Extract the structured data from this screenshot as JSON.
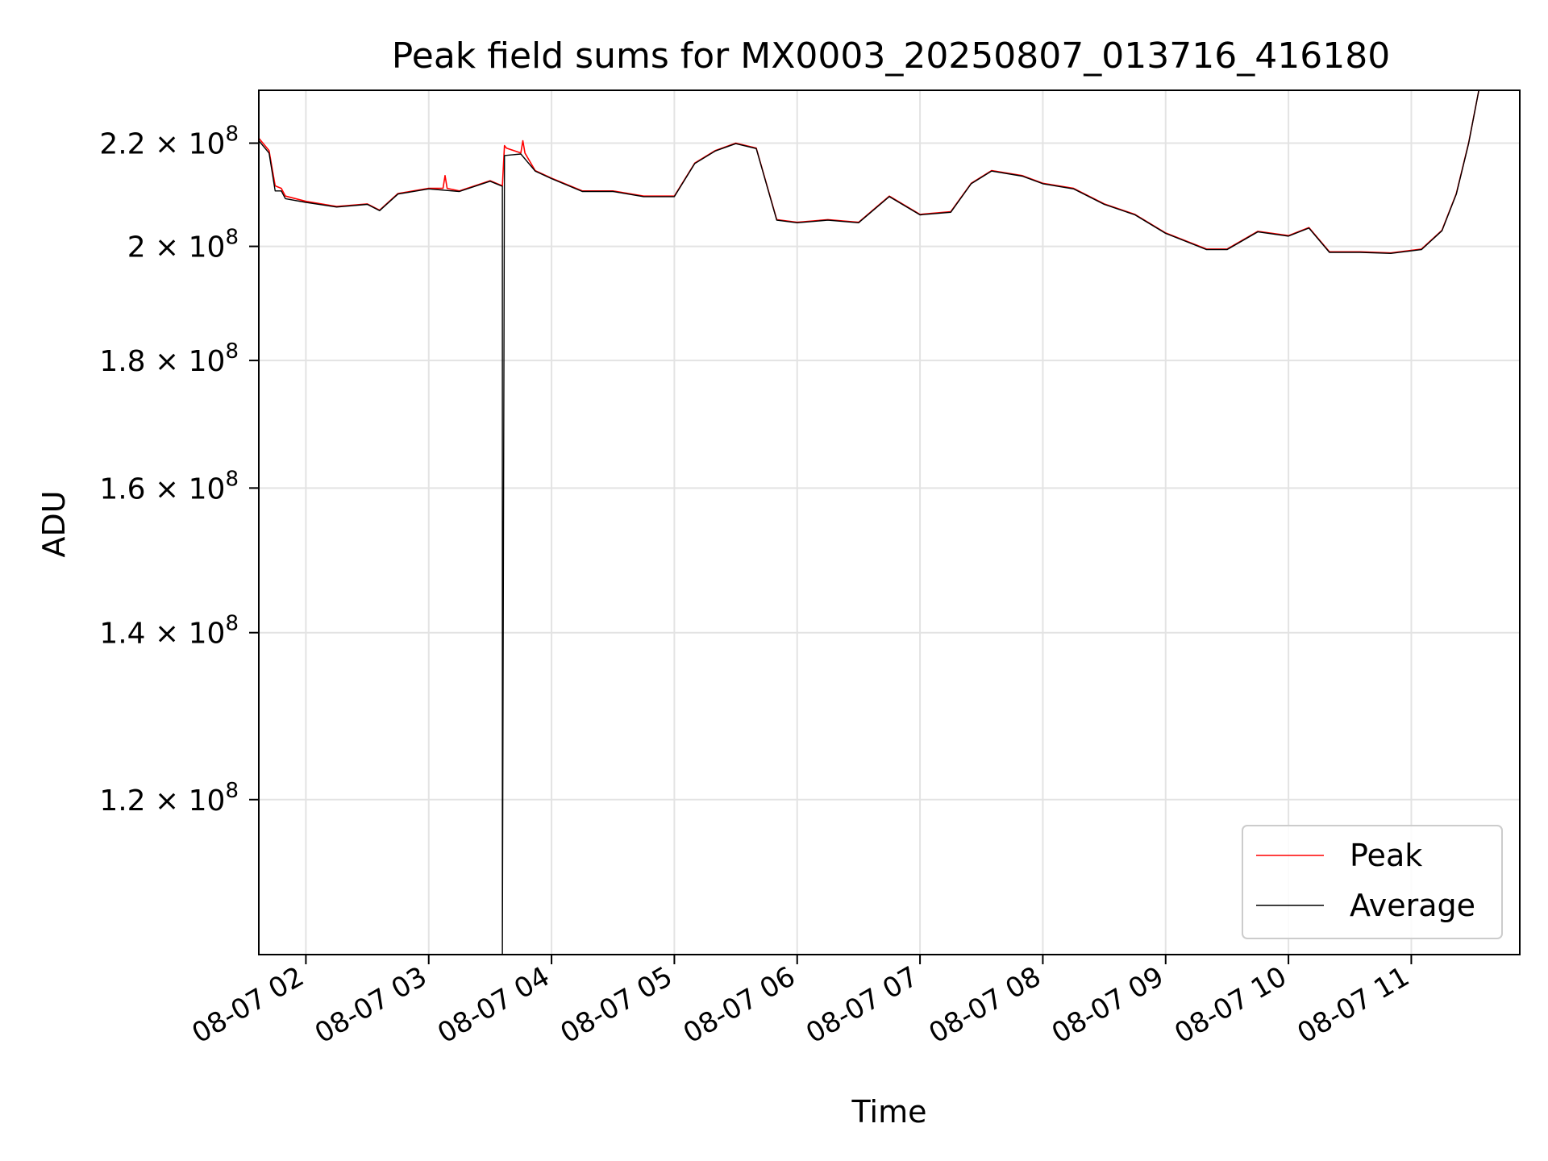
{
  "chart_data": {
    "type": "line",
    "title": "Peak field sums for MX0003_20250807_013716_416180",
    "xlabel": "Time",
    "ylabel": "ADU",
    "yscale": "log",
    "grid": true,
    "legend_position": "lower right",
    "xlim": [
      "2025-08-07 01:37",
      "2025-08-07 11:53"
    ],
    "ylim": [
      104000000,
      231000000
    ],
    "xticks": [
      {
        "t": "2025-08-07 02:00",
        "label": "08-07 02"
      },
      {
        "t": "2025-08-07 03:00",
        "label": "08-07 03"
      },
      {
        "t": "2025-08-07 04:00",
        "label": "08-07 04"
      },
      {
        "t": "2025-08-07 05:00",
        "label": "08-07 05"
      },
      {
        "t": "2025-08-07 06:00",
        "label": "08-07 06"
      },
      {
        "t": "2025-08-07 07:00",
        "label": "08-07 07"
      },
      {
        "t": "2025-08-07 08:00",
        "label": "08-07 08"
      },
      {
        "t": "2025-08-07 09:00",
        "label": "08-07 09"
      },
      {
        "t": "2025-08-07 10:00",
        "label": "08-07 10"
      },
      {
        "t": "2025-08-07 11:00",
        "label": "08-07 11"
      }
    ],
    "yticks": [
      {
        "value": 120000000,
        "mantissa": "1.2",
        "exponent": "8"
      },
      {
        "value": 140000000,
        "mantissa": "1.4",
        "exponent": "8"
      },
      {
        "value": 160000000,
        "mantissa": "1.6",
        "exponent": "8"
      },
      {
        "value": 180000000,
        "mantissa": "1.8",
        "exponent": "8"
      },
      {
        "value": 200000000,
        "mantissa": "2",
        "exponent": "8"
      },
      {
        "value": 220000000,
        "mantissa": "2.2",
        "exponent": "8"
      }
    ],
    "series": [
      {
        "name": "Peak",
        "color": "#ff0000",
        "points": [
          [
            "2025-08-07 01:37",
            221000000
          ],
          [
            "2025-08-07 01:42",
            218500000
          ],
          [
            "2025-08-07 01:45",
            211500000
          ],
          [
            "2025-08-07 01:48",
            211000000
          ],
          [
            "2025-08-07 01:50",
            209500000
          ],
          [
            "2025-08-07 02:00",
            208500000
          ],
          [
            "2025-08-07 02:15",
            207500000
          ],
          [
            "2025-08-07 02:30",
            208000000
          ],
          [
            "2025-08-07 02:36",
            206800000
          ],
          [
            "2025-08-07 02:45",
            210000000
          ],
          [
            "2025-08-07 03:00",
            211000000
          ],
          [
            "2025-08-07 03:07",
            211000000
          ],
          [
            "2025-08-07 03:08",
            213500000
          ],
          [
            "2025-08-07 03:09",
            211000000
          ],
          [
            "2025-08-07 03:15",
            210500000
          ],
          [
            "2025-08-07 03:30",
            212500000
          ],
          [
            "2025-08-07 03:36",
            211500000
          ],
          [
            "2025-08-07 03:37",
            219500000
          ],
          [
            "2025-08-07 03:38",
            219000000
          ],
          [
            "2025-08-07 03:45",
            218000000
          ],
          [
            "2025-08-07 03:46",
            220500000
          ],
          [
            "2025-08-07 03:47",
            218000000
          ],
          [
            "2025-08-07 03:52",
            214500000
          ],
          [
            "2025-08-07 04:00",
            213000000
          ],
          [
            "2025-08-07 04:15",
            210500000
          ],
          [
            "2025-08-07 04:30",
            210500000
          ],
          [
            "2025-08-07 04:45",
            209500000
          ],
          [
            "2025-08-07 05:00",
            209500000
          ],
          [
            "2025-08-07 05:10",
            216000000
          ],
          [
            "2025-08-07 05:20",
            218500000
          ],
          [
            "2025-08-07 05:30",
            220000000
          ],
          [
            "2025-08-07 05:40",
            219000000
          ],
          [
            "2025-08-07 05:50",
            205000000
          ],
          [
            "2025-08-07 06:00",
            204500000
          ],
          [
            "2025-08-07 06:15",
            205000000
          ],
          [
            "2025-08-07 06:30",
            204500000
          ],
          [
            "2025-08-07 06:45",
            209500000
          ],
          [
            "2025-08-07 07:00",
            206000000
          ],
          [
            "2025-08-07 07:15",
            206500000
          ],
          [
            "2025-08-07 07:25",
            212000000
          ],
          [
            "2025-08-07 07:35",
            214500000
          ],
          [
            "2025-08-07 07:50",
            213500000
          ],
          [
            "2025-08-07 08:00",
            212000000
          ],
          [
            "2025-08-07 08:15",
            211000000
          ],
          [
            "2025-08-07 08:30",
            208000000
          ],
          [
            "2025-08-07 08:45",
            206000000
          ],
          [
            "2025-08-07 09:00",
            202500000
          ],
          [
            "2025-08-07 09:10",
            201000000
          ],
          [
            "2025-08-07 09:20",
            199500000
          ],
          [
            "2025-08-07 09:30",
            199500000
          ],
          [
            "2025-08-07 09:45",
            202800000
          ],
          [
            "2025-08-07 10:00",
            202000000
          ],
          [
            "2025-08-07 10:10",
            203500000
          ],
          [
            "2025-08-07 10:20",
            199000000
          ],
          [
            "2025-08-07 10:35",
            199000000
          ],
          [
            "2025-08-07 10:50",
            198800000
          ],
          [
            "2025-08-07 11:05",
            199500000
          ],
          [
            "2025-08-07 11:15",
            203000000
          ],
          [
            "2025-08-07 11:22",
            210000000
          ],
          [
            "2025-08-07 11:28",
            220000000
          ],
          [
            "2025-08-07 11:33",
            231000000
          ]
        ]
      },
      {
        "name": "Average",
        "color": "#000000",
        "points": [
          [
            "2025-08-07 01:37",
            220500000
          ],
          [
            "2025-08-07 01:42",
            218000000
          ],
          [
            "2025-08-07 01:45",
            210500000
          ],
          [
            "2025-08-07 01:48",
            210500000
          ],
          [
            "2025-08-07 01:50",
            209000000
          ],
          [
            "2025-08-07 02:00",
            208300000
          ],
          [
            "2025-08-07 02:15",
            207400000
          ],
          [
            "2025-08-07 02:30",
            207900000
          ],
          [
            "2025-08-07 02:36",
            206700000
          ],
          [
            "2025-08-07 02:45",
            209900000
          ],
          [
            "2025-08-07 03:00",
            210900000
          ],
          [
            "2025-08-07 03:15",
            210400000
          ],
          [
            "2025-08-07 03:30",
            212400000
          ],
          [
            "2025-08-07 03:36",
            211400000
          ],
          [
            "2025-08-07 03:36",
            104000000
          ],
          [
            "2025-08-07 03:37",
            217500000
          ],
          [
            "2025-08-07 03:45",
            217800000
          ],
          [
            "2025-08-07 03:52",
            214400000
          ],
          [
            "2025-08-07 04:00",
            212900000
          ],
          [
            "2025-08-07 04:15",
            210400000
          ],
          [
            "2025-08-07 04:30",
            210400000
          ],
          [
            "2025-08-07 04:45",
            209400000
          ],
          [
            "2025-08-07 05:00",
            209400000
          ],
          [
            "2025-08-07 05:10",
            215900000
          ],
          [
            "2025-08-07 05:20",
            218400000
          ],
          [
            "2025-08-07 05:30",
            219900000
          ],
          [
            "2025-08-07 05:40",
            218900000
          ],
          [
            "2025-08-07 05:50",
            204900000
          ],
          [
            "2025-08-07 06:00",
            204400000
          ],
          [
            "2025-08-07 06:15",
            204900000
          ],
          [
            "2025-08-07 06:30",
            204400000
          ],
          [
            "2025-08-07 06:45",
            209400000
          ],
          [
            "2025-08-07 07:00",
            205900000
          ],
          [
            "2025-08-07 07:15",
            206400000
          ],
          [
            "2025-08-07 07:25",
            211900000
          ],
          [
            "2025-08-07 07:35",
            214400000
          ],
          [
            "2025-08-07 07:50",
            213400000
          ],
          [
            "2025-08-07 08:00",
            211900000
          ],
          [
            "2025-08-07 08:15",
            210900000
          ],
          [
            "2025-08-07 08:30",
            207900000
          ],
          [
            "2025-08-07 08:45",
            205900000
          ],
          [
            "2025-08-07 09:00",
            202400000
          ],
          [
            "2025-08-07 09:10",
            200900000
          ],
          [
            "2025-08-07 09:20",
            199400000
          ],
          [
            "2025-08-07 09:30",
            199400000
          ],
          [
            "2025-08-07 09:45",
            202700000
          ],
          [
            "2025-08-07 10:00",
            201900000
          ],
          [
            "2025-08-07 10:10",
            203400000
          ],
          [
            "2025-08-07 10:20",
            198900000
          ],
          [
            "2025-08-07 10:35",
            198900000
          ],
          [
            "2025-08-07 10:50",
            198700000
          ],
          [
            "2025-08-07 11:05",
            199400000
          ],
          [
            "2025-08-07 11:15",
            202900000
          ],
          [
            "2025-08-07 11:22",
            209900000
          ],
          [
            "2025-08-07 11:28",
            219900000
          ],
          [
            "2025-08-07 11:33",
            231000000
          ]
        ]
      }
    ]
  }
}
